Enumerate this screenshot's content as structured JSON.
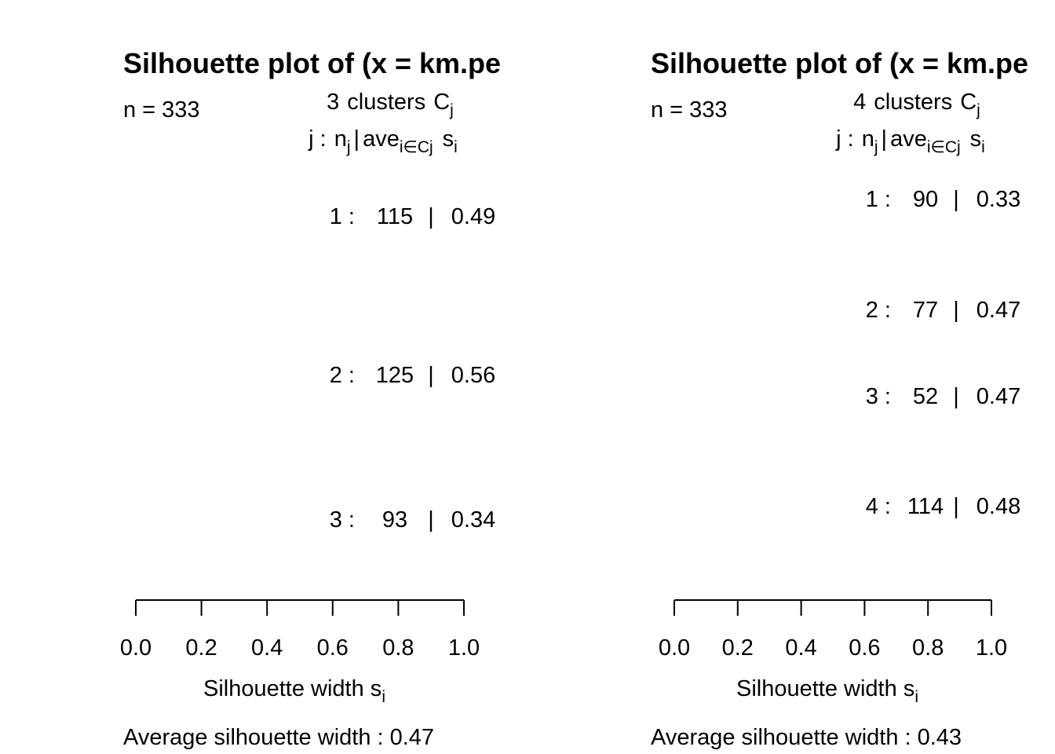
{
  "chart_data": [
    {
      "type": "silhouette",
      "title": "Silhouette plot of (x = km.pe",
      "n_label": "n = 333",
      "clusters_header": {
        "count": "3",
        "text": "clusters",
        "C": "C",
        "C_sub": "j"
      },
      "cols_header": {
        "j": "j :",
        "n": "n",
        "n_sub": "j",
        "bar": "|",
        "ave": "ave",
        "ave_sub": "i∈Cj",
        "s": "s",
        "s_sub": "i"
      },
      "clusters": [
        {
          "label": "1 :",
          "n": "115",
          "sep": "|",
          "s": "0.49",
          "n_value": 115,
          "avg_width": 0.49
        },
        {
          "label": "2 :",
          "n": "125",
          "sep": "|",
          "s": "0.56",
          "n_value": 125,
          "avg_width": 0.56
        },
        {
          "label": "3 :",
          "n": "93",
          "sep": "|",
          "s": "0.34",
          "n_value": 93,
          "avg_width": 0.34
        }
      ],
      "xticks": [
        "0.0",
        "0.2",
        "0.4",
        "0.6",
        "0.8",
        "1.0"
      ],
      "xlim": [
        0,
        1
      ],
      "xlabel": "Silhouette width s",
      "xlabel_sub": "i",
      "avg_label": "Average silhouette width :  0.47"
    },
    {
      "type": "silhouette",
      "title": "Silhouette plot of (x = km.pe",
      "n_label": "n = 333",
      "clusters_header": {
        "count": "4",
        "text": "clusters",
        "C": "C",
        "C_sub": "j"
      },
      "cols_header": {
        "j": "j :",
        "n": "n",
        "n_sub": "j",
        "bar": "|",
        "ave": "ave",
        "ave_sub": "i∈Cj",
        "s": "s",
        "s_sub": "i"
      },
      "clusters": [
        {
          "label": "1 :",
          "n": "90",
          "sep": "|",
          "s": "0.33",
          "n_value": 90,
          "avg_width": 0.33
        },
        {
          "label": "2 :",
          "n": "77",
          "sep": "|",
          "s": "0.47",
          "n_value": 77,
          "avg_width": 0.47
        },
        {
          "label": "3 :",
          "n": "52",
          "sep": "|",
          "s": "0.47",
          "n_value": 52,
          "avg_width": 0.47
        },
        {
          "label": "4 :",
          "n": "114",
          "sep": "|",
          "s": "0.48",
          "n_value": 114,
          "avg_width": 0.48
        }
      ],
      "xticks": [
        "0.0",
        "0.2",
        "0.4",
        "0.6",
        "0.8",
        "1.0"
      ],
      "xlim": [
        0,
        1
      ],
      "xlabel": "Silhouette width s",
      "xlabel_sub": "i",
      "avg_label": "Average silhouette width :  0.43"
    }
  ]
}
